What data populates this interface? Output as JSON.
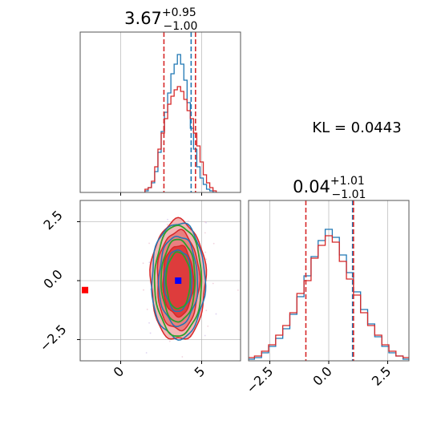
{
  "chart_data": [
    {
      "type": "histogram",
      "panel": "marginal-x",
      "title_value": "3.67",
      "title_plus": "+0.95",
      "title_minus": "−1.00",
      "xlim": [
        -2.5,
        7.4
      ],
      "ylim": [
        0,
        1.0
      ],
      "grid": true,
      "series": [
        {
          "color": "#1f77b4",
          "x": [
            1.6,
            1.8,
            2.0,
            2.2,
            2.4,
            2.6,
            2.8,
            3.0,
            3.2,
            3.4,
            3.6,
            3.8,
            4.0,
            4.2,
            4.4,
            4.6,
            4.8,
            5.0,
            5.2,
            5.4,
            5.6,
            5.8
          ],
          "values": [
            0.01,
            0.03,
            0.06,
            0.13,
            0.25,
            0.38,
            0.5,
            0.62,
            0.74,
            0.8,
            0.86,
            0.8,
            0.7,
            0.56,
            0.4,
            0.27,
            0.16,
            0.09,
            0.05,
            0.02,
            0.01,
            0.0
          ]
        },
        {
          "color": "#d62728",
          "x": [
            1.6,
            1.8,
            2.0,
            2.2,
            2.4,
            2.6,
            2.8,
            3.0,
            3.2,
            3.4,
            3.6,
            3.8,
            4.0,
            4.2,
            4.4,
            4.6,
            4.8,
            5.0,
            5.2,
            5.4,
            5.6,
            5.8
          ],
          "values": [
            0.02,
            0.03,
            0.07,
            0.16,
            0.27,
            0.37,
            0.46,
            0.55,
            0.6,
            0.64,
            0.66,
            0.63,
            0.58,
            0.51,
            0.46,
            0.37,
            0.29,
            0.19,
            0.11,
            0.06,
            0.03,
            0.01
          ]
        }
      ],
      "quantile_lines": [
        {
          "x": 2.67,
          "color": "#d62728"
        },
        {
          "x": 4.35,
          "color": "#1f77b4"
        },
        {
          "x": 4.62,
          "color": "#d62728"
        }
      ]
    },
    {
      "type": "histogram",
      "panel": "marginal-y",
      "title_value": "0.04",
      "title_plus": "+1.01",
      "title_minus": "−1.01",
      "xlim": [
        -3.4,
        3.4
      ],
      "ylim": [
        0,
        1.0
      ],
      "x_ticks": [
        "−2.5",
        "0.0",
        "2.5"
      ],
      "x_tick_values": [
        -2.5,
        0.0,
        2.5
      ],
      "grid": true,
      "series": [
        {
          "color": "#1f77b4",
          "x": [
            -3.3,
            -3.0,
            -2.7,
            -2.4,
            -2.1,
            -1.8,
            -1.5,
            -1.2,
            -0.9,
            -0.6,
            -0.3,
            0.0,
            0.3,
            0.6,
            0.9,
            1.2,
            1.5,
            1.8,
            2.1,
            2.4,
            2.7,
            3.0,
            3.3
          ],
          "values": [
            0.01,
            0.02,
            0.05,
            0.09,
            0.14,
            0.2,
            0.29,
            0.4,
            0.53,
            0.65,
            0.75,
            0.82,
            0.77,
            0.66,
            0.55,
            0.43,
            0.32,
            0.23,
            0.15,
            0.09,
            0.05,
            0.03,
            0.01
          ]
        },
        {
          "color": "#d62728",
          "x": [
            -3.3,
            -3.0,
            -2.7,
            -2.4,
            -2.1,
            -1.8,
            -1.5,
            -1.2,
            -0.9,
            -0.6,
            -0.3,
            0.0,
            0.3,
            0.6,
            0.9,
            1.2,
            1.5,
            1.8,
            2.1,
            2.4,
            2.7,
            3.0,
            3.3
          ],
          "values": [
            0.02,
            0.03,
            0.06,
            0.1,
            0.16,
            0.22,
            0.3,
            0.42,
            0.5,
            0.64,
            0.72,
            0.78,
            0.74,
            0.62,
            0.51,
            0.41,
            0.3,
            0.22,
            0.16,
            0.1,
            0.06,
            0.03,
            0.02
          ]
        }
      ],
      "quantile_lines": [
        {
          "x": -0.97,
          "color": "#d62728"
        },
        {
          "x": 1.01,
          "color": "#1f77b4"
        },
        {
          "x": 1.05,
          "color": "#d62728"
        }
      ]
    },
    {
      "type": "contour",
      "panel": "joint",
      "xlim": [
        -2.5,
        7.4
      ],
      "ylim": [
        -3.4,
        3.4
      ],
      "x_ticks": [
        "0",
        "5"
      ],
      "x_tick_values": [
        0,
        5
      ],
      "y_ticks": [
        "2.5",
        "0.0",
        "−2.5"
      ],
      "y_tick_values": [
        2.5,
        0.0,
        -2.5
      ],
      "grid": true,
      "center": [
        3.55,
        0.0
      ],
      "truth_marker": {
        "x": -2.2,
        "y": -0.4,
        "color": "#ff0000"
      },
      "center_marker_color": "#0000ff",
      "red_levels": [
        {
          "rx": 1.7,
          "ry": 2.55,
          "fill": "#f3b6b6"
        },
        {
          "rx": 1.3,
          "ry": 2.1,
          "fill": "#e97f80"
        },
        {
          "rx": 0.95,
          "ry": 1.5,
          "fill": "#de3c3c"
        }
      ],
      "blue_levels": [
        {
          "rx": 1.65,
          "ry": 2.45
        },
        {
          "rx": 1.2,
          "ry": 1.9
        },
        {
          "rx": 0.85,
          "ry": 1.3
        }
      ],
      "green_levels": [
        {
          "rx": 1.45,
          "ry": 2.35
        },
        {
          "rx": 1.05,
          "ry": 1.75
        },
        {
          "rx": 0.75,
          "ry": 1.2
        }
      ]
    }
  ],
  "annotation": {
    "kl_text": "KL = 0.0443"
  },
  "colors": {
    "blue": "#1f77b4",
    "red": "#d62728",
    "green": "#2ca02c"
  }
}
